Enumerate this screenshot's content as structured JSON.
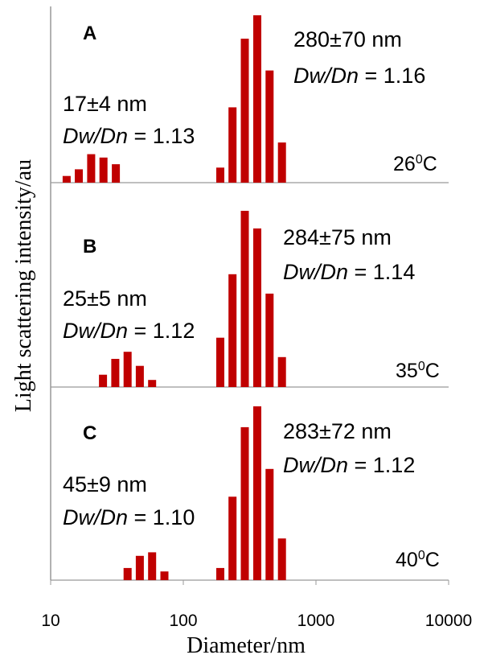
{
  "chart_data": {
    "type": "bar",
    "xscale": "log",
    "xlim": [
      10,
      10000
    ],
    "xticks": [
      "10",
      "100",
      "1000",
      "10000"
    ],
    "xlabel": "Diameter/nm",
    "ylabel": "Light scattering intensity/au",
    "bar_color": "#c00000",
    "panels": [
      {
        "label": "A",
        "temperature_base": "26",
        "temperature_sup": "0",
        "temperature_unit": "C",
        "small_size": "17±4 nm",
        "small_dwdn_label": "Dw/Dn",
        "small_dwdn_value": " = 1.13",
        "large_size": "280±70 nm",
        "large_dwdn_label": "Dw/Dn",
        "large_dwdn_value": " = 1.16",
        "x": [
          13.2,
          16.3,
          20.2,
          25,
          31,
          190,
          235,
          291,
          361,
          447,
          554
        ],
        "values": [
          0.04,
          0.08,
          0.17,
          0.15,
          0.11,
          0.09,
          0.45,
          0.86,
          1.0,
          0.67,
          0.24
        ]
      },
      {
        "label": "B",
        "temperature_base": "35",
        "temperature_sup": "0",
        "temperature_unit": "C",
        "small_size": "25±5 nm",
        "small_dwdn_label": "Dw/Dn",
        "small_dwdn_value": "  = 1.12",
        "large_size": "284±75 nm",
        "large_dwdn_label": "Dw/Dn",
        "large_dwdn_value": " = 1.14",
        "x": [
          24.8,
          30.7,
          38,
          47,
          58.2,
          190,
          235,
          291,
          361,
          447,
          554
        ],
        "values": [
          0.07,
          0.16,
          0.2,
          0.12,
          0.04,
          0.28,
          0.64,
          1.0,
          0.9,
          0.53,
          0.17
        ]
      },
      {
        "label": "C",
        "temperature_base": "40",
        "temperature_sup": "0",
        "temperature_unit": "C",
        "small_size": "45±9 nm",
        "small_dwdn_label": "Dw/Dn",
        "small_dwdn_value": " = 1.10",
        "large_size": "283±72 nm",
        "large_dwdn_label": "Dw/Dn",
        "large_dwdn_value": " = 1.12",
        "x": [
          38,
          47,
          58.2,
          72,
          190,
          235,
          291,
          361,
          447,
          554
        ],
        "values": [
          0.07,
          0.14,
          0.16,
          0.05,
          0.07,
          0.48,
          0.88,
          1.0,
          0.64,
          0.24
        ]
      }
    ]
  }
}
